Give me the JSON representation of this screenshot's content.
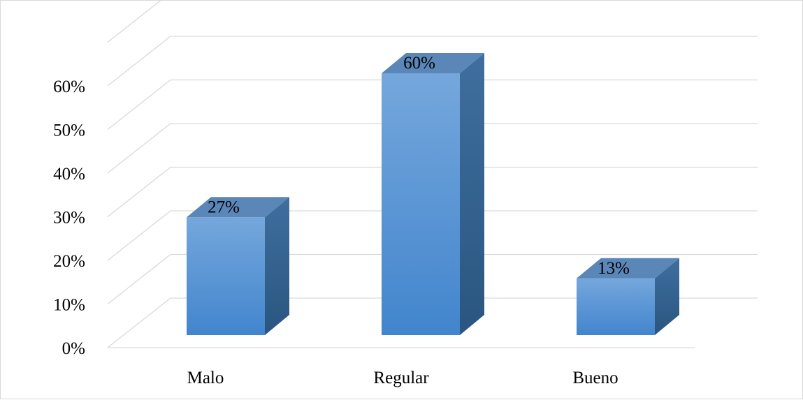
{
  "chart_data": {
    "type": "bar",
    "categories": [
      "Malo",
      "Regular",
      "Bueno"
    ],
    "values": [
      27,
      60,
      13
    ],
    "data_labels": [
      "27%",
      "60%",
      "13%"
    ],
    "title": "",
    "xlabel": "",
    "ylabel": "",
    "ylim": [
      0,
      60
    ],
    "yticks": [
      0,
      10,
      20,
      30,
      40,
      50,
      60
    ],
    "ytick_labels": [
      "0%",
      "10%",
      "20%",
      "30%",
      "40%",
      "50%",
      "60%"
    ],
    "style": "3d-column",
    "grid": true,
    "legend": "none",
    "colors": {
      "front_top": "#75a7dc",
      "front_bottom": "#4285cd",
      "side": "#2f5f8f",
      "top": "#5a86b8",
      "grid": "#d9d9d9"
    }
  }
}
